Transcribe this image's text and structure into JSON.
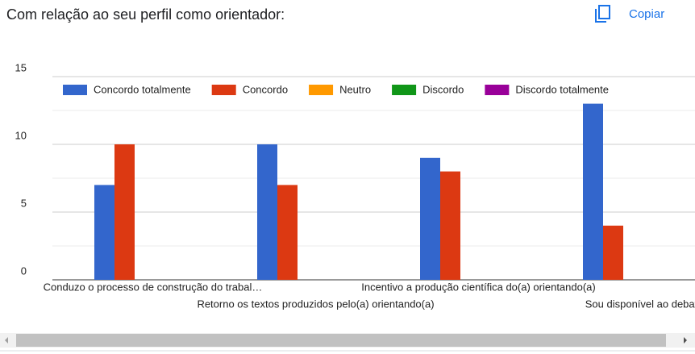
{
  "header": {
    "title": "Com relação ao seu perfil como orientador:",
    "copy_button": "Copiar"
  },
  "chart_data": {
    "type": "bar",
    "categories": [
      "Conduzo o processo de construção do trabal…",
      "Retorno os textos produzidos pelo(a) orientando(a)",
      "Incentivo a produção científica do(a) orientando(a)",
      "Sou disponível ao debat"
    ],
    "series": [
      {
        "name": "Concordo totalmente",
        "color": "#3366cc",
        "values": [
          7,
          10,
          9,
          13
        ]
      },
      {
        "name": "Concordo",
        "color": "#dc3912",
        "values": [
          10,
          7,
          8,
          4
        ]
      },
      {
        "name": "Neutro",
        "color": "#ff9900",
        "values": [
          0,
          0,
          0,
          0
        ]
      },
      {
        "name": "Discordo",
        "color": "#109618",
        "values": [
          0,
          0,
          0,
          0
        ]
      },
      {
        "name": "Discordo totalmente",
        "color": "#990099",
        "values": [
          0,
          0,
          0,
          0
        ]
      }
    ],
    "ylim": [
      0,
      15
    ],
    "yticks": [
      0,
      5,
      10,
      15
    ],
    "minor_yticks": [
      2.5,
      7.5,
      12.5
    ],
    "grid": true,
    "legend": "top"
  }
}
